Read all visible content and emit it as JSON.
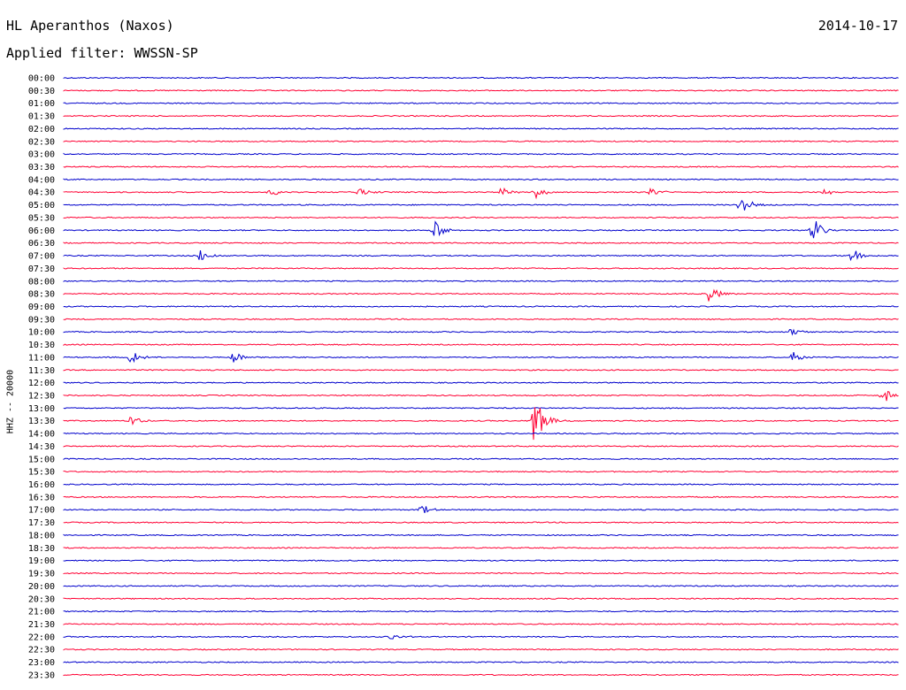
{
  "header": {
    "station": "HL Aperanthos (Naxos)",
    "filter": "Applied filter: WWSSN-SP",
    "date": "2014-10-17"
  },
  "chart_data": {
    "type": "line",
    "title": "HL Aperanthos (Naxos)",
    "subtitle": "Applied filter: WWSSN-SP",
    "ylabel": "HHZ -- 20000",
    "row_labels": [
      "00:00",
      "00:30",
      "01:00",
      "01:30",
      "02:00",
      "02:30",
      "03:00",
      "03:30",
      "04:00",
      "04:30",
      "05:00",
      "05:30",
      "06:00",
      "06:30",
      "07:00",
      "07:30",
      "08:00",
      "08:30",
      "09:00",
      "09:30",
      "10:00",
      "10:30",
      "11:00",
      "11:30",
      "12:00",
      "12:30",
      "13:00",
      "13:30",
      "14:00",
      "14:30",
      "15:00",
      "15:30",
      "16:00",
      "16:30",
      "17:00",
      "17:30",
      "18:00",
      "18:30",
      "19:00",
      "19:30",
      "20:00",
      "20:30",
      "21:00",
      "21:30",
      "22:00",
      "22:30",
      "23:00",
      "23:30"
    ],
    "colors": [
      "#0000cc",
      "#ff0033"
    ],
    "x_range_minutes": [
      0,
      30
    ],
    "events": [
      {
        "row": 9,
        "minute": 7.4,
        "amp": 5
      },
      {
        "row": 9,
        "minute": 10.6,
        "amp": 6
      },
      {
        "row": 9,
        "minute": 15.7,
        "amp": 6
      },
      {
        "row": 9,
        "minute": 16.9,
        "amp": 8
      },
      {
        "row": 9,
        "minute": 21.1,
        "amp": 6
      },
      {
        "row": 9,
        "minute": 27.3,
        "amp": 4
      },
      {
        "row": 10,
        "minute": 24.3,
        "amp": 14
      },
      {
        "row": 12,
        "minute": 13.3,
        "amp": 14
      },
      {
        "row": 12,
        "minute": 26.9,
        "amp": 16
      },
      {
        "row": 14,
        "minute": 4.9,
        "amp": 9
      },
      {
        "row": 14,
        "minute": 28.3,
        "amp": 12
      },
      {
        "row": 17,
        "minute": 23.2,
        "amp": 11
      },
      {
        "row": 20,
        "minute": 26.1,
        "amp": 5
      },
      {
        "row": 22,
        "minute": 2.4,
        "amp": 8
      },
      {
        "row": 22,
        "minute": 6.1,
        "amp": 7
      },
      {
        "row": 22,
        "minute": 26.2,
        "amp": 8
      },
      {
        "row": 25,
        "minute": 29.4,
        "amp": 10
      },
      {
        "row": 27,
        "minute": 2.4,
        "amp": 6
      },
      {
        "row": 27,
        "minute": 16.9,
        "amp": 32
      },
      {
        "row": 34,
        "minute": 12.8,
        "amp": 7
      },
      {
        "row": 44,
        "minute": 11.7,
        "amp": 5
      }
    ]
  }
}
